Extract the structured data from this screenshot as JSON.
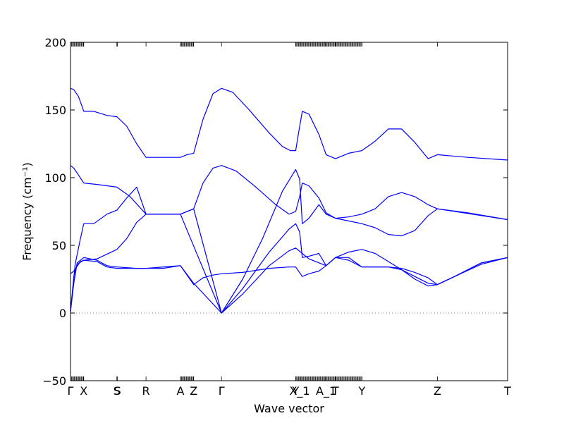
{
  "chart_data": {
    "type": "line",
    "xlabel": "Wave vector",
    "ylabel": "Frequency (cm⁻¹)",
    "ylim": [
      -50,
      200
    ],
    "yticks": [
      -50,
      0,
      50,
      100,
      150,
      200
    ],
    "grid": false,
    "zero_line": {
      "y": 0,
      "style": "dotted",
      "color": "#808080"
    },
    "line_color": "#0000ff",
    "xlim": [
      0,
      6.6
    ],
    "special_points": [
      {
        "label": "Γ",
        "x": 0.0
      },
      {
        "label": "X",
        "x": 0.2
      },
      {
        "label": "S",
        "x": 0.7
      },
      {
        "label": "S",
        "x": 0.71
      },
      {
        "label": "R",
        "x": 1.14
      },
      {
        "label": "A",
        "x": 1.66
      },
      {
        "label": "Z",
        "x": 1.86
      },
      {
        "label": "Γ",
        "x": 2.28
      },
      {
        "label": "Y",
        "x": 3.4
      },
      {
        "label": "X_1",
        "x": 3.46
      },
      {
        "label": "A_1",
        "x": 3.86
      },
      {
        "label": "T",
        "x": 4.0
      },
      {
        "label": "Y",
        "x": 4.4
      },
      {
        "label": "Z",
        "x": 5.54
      },
      {
        "label": "T",
        "x": 6.6
      }
    ],
    "tick_clusters": [
      [
        0.0,
        0.2
      ],
      [
        1.66,
        1.86
      ],
      [
        3.4,
        3.86
      ],
      [
        3.86,
        4.4
      ]
    ],
    "series": [
      {
        "values": [
          [
            0,
            166
          ],
          [
            0.05,
            165
          ],
          [
            0.12,
            160
          ],
          [
            0.2,
            149
          ],
          [
            0.35,
            149
          ],
          [
            0.55,
            146
          ],
          [
            0.7,
            145
          ],
          [
            0.85,
            138
          ],
          [
            1.0,
            125
          ],
          [
            1.14,
            115
          ],
          [
            1.4,
            115
          ],
          [
            1.66,
            115
          ],
          [
            1.76,
            117
          ],
          [
            1.86,
            118
          ],
          [
            2.0,
            143
          ],
          [
            2.15,
            162
          ],
          [
            2.28,
            166
          ],
          [
            2.45,
            163
          ],
          [
            2.7,
            150
          ],
          [
            3.0,
            133
          ],
          [
            3.2,
            123
          ],
          [
            3.32,
            120
          ],
          [
            3.4,
            120
          ],
          [
            3.45,
            135
          ],
          [
            3.5,
            149
          ],
          [
            3.6,
            147
          ],
          [
            3.75,
            132
          ],
          [
            3.86,
            117
          ],
          [
            4.0,
            114
          ],
          [
            4.2,
            118
          ],
          [
            4.4,
            120
          ],
          [
            4.6,
            127
          ],
          [
            4.8,
            136
          ],
          [
            5.0,
            136
          ],
          [
            5.2,
            126
          ],
          [
            5.4,
            114
          ],
          [
            5.54,
            117
          ],
          [
            6.0,
            115
          ],
          [
            6.6,
            113
          ]
        ]
      },
      {
        "values": [
          [
            0,
            109
          ],
          [
            0.05,
            107
          ],
          [
            0.12,
            102
          ],
          [
            0.2,
            96
          ],
          [
            0.4,
            95
          ],
          [
            0.7,
            93
          ],
          [
            0.9,
            86
          ],
          [
            1.14,
            73
          ],
          [
            1.4,
            73
          ],
          [
            1.66,
            73
          ],
          [
            1.86,
            77
          ],
          [
            2.0,
            96
          ],
          [
            2.15,
            107
          ],
          [
            2.28,
            109
          ],
          [
            2.5,
            105
          ],
          [
            2.8,
            93
          ],
          [
            3.1,
            80
          ],
          [
            3.3,
            73
          ],
          [
            3.4,
            75
          ],
          [
            3.46,
            86
          ],
          [
            3.5,
            96
          ],
          [
            3.6,
            94
          ],
          [
            3.75,
            85
          ],
          [
            3.86,
            74
          ],
          [
            4.0,
            70
          ],
          [
            4.2,
            71
          ],
          [
            4.4,
            73
          ],
          [
            4.6,
            77
          ],
          [
            4.8,
            86
          ],
          [
            5.0,
            89
          ],
          [
            5.2,
            86
          ],
          [
            5.4,
            80
          ],
          [
            5.54,
            77
          ],
          [
            6.0,
            74
          ],
          [
            6.6,
            69
          ]
        ]
      },
      {
        "values": [
          [
            0,
            1
          ],
          [
            0.07,
            36
          ],
          [
            0.15,
            55
          ],
          [
            0.2,
            66
          ],
          [
            0.35,
            66
          ],
          [
            0.55,
            73
          ],
          [
            0.7,
            76
          ],
          [
            0.85,
            85
          ],
          [
            1.0,
            93
          ],
          [
            1.14,
            73
          ],
          [
            1.66,
            73
          ],
          [
            1.86,
            77
          ],
          [
            2.28,
            0
          ],
          [
            2.6,
            25
          ],
          [
            2.9,
            55
          ],
          [
            3.2,
            90
          ],
          [
            3.4,
            106
          ],
          [
            3.46,
            99
          ],
          [
            3.5,
            66
          ],
          [
            3.6,
            70
          ],
          [
            3.75,
            80
          ],
          [
            3.86,
            73
          ],
          [
            4.0,
            70
          ],
          [
            4.2,
            68
          ],
          [
            4.4,
            66
          ],
          [
            4.6,
            63
          ],
          [
            4.8,
            58
          ],
          [
            5.0,
            57
          ],
          [
            5.2,
            61
          ],
          [
            5.4,
            72
          ],
          [
            5.54,
            77
          ],
          [
            6.6,
            69
          ]
        ]
      },
      {
        "values": [
          [
            0,
            1
          ],
          [
            0.05,
            27
          ],
          [
            0.1,
            36
          ],
          [
            0.2,
            39
          ],
          [
            0.4,
            40
          ],
          [
            0.7,
            47
          ],
          [
            0.85,
            55
          ],
          [
            1.0,
            67
          ],
          [
            1.14,
            73
          ],
          [
            1.66,
            73
          ],
          [
            2.28,
            0
          ],
          [
            2.6,
            18
          ],
          [
            3.0,
            45
          ],
          [
            3.3,
            62
          ],
          [
            3.4,
            66
          ],
          [
            3.46,
            60
          ],
          [
            3.5,
            41
          ],
          [
            3.6,
            42
          ],
          [
            3.75,
            44
          ],
          [
            3.86,
            35
          ],
          [
            4.0,
            41
          ],
          [
            4.2,
            39
          ],
          [
            4.4,
            34
          ],
          [
            4.8,
            34
          ],
          [
            5.0,
            33
          ],
          [
            5.2,
            30
          ],
          [
            5.4,
            26
          ],
          [
            5.54,
            21
          ],
          [
            5.8,
            27
          ],
          [
            6.2,
            37
          ],
          [
            6.6,
            41
          ]
        ]
      },
      {
        "values": [
          [
            0,
            1
          ],
          [
            0.05,
            22
          ],
          [
            0.1,
            37
          ],
          [
            0.2,
            41
          ],
          [
            0.4,
            39
          ],
          [
            0.55,
            35
          ],
          [
            0.7,
            34
          ],
          [
            1.0,
            33
          ],
          [
            1.14,
            33
          ],
          [
            1.4,
            33
          ],
          [
            1.66,
            35
          ],
          [
            1.86,
            22
          ],
          [
            2.28,
            0
          ],
          [
            2.6,
            14
          ],
          [
            3.0,
            35
          ],
          [
            3.3,
            46
          ],
          [
            3.4,
            48
          ],
          [
            3.5,
            44
          ],
          [
            3.6,
            40
          ],
          [
            3.86,
            35
          ],
          [
            4.0,
            41
          ],
          [
            4.2,
            45
          ],
          [
            4.4,
            47
          ],
          [
            4.6,
            44
          ],
          [
            4.8,
            38
          ],
          [
            5.0,
            32
          ],
          [
            5.2,
            25
          ],
          [
            5.4,
            20
          ],
          [
            5.54,
            21
          ],
          [
            5.8,
            27
          ],
          [
            6.2,
            36
          ],
          [
            6.6,
            41
          ]
        ]
      },
      {
        "values": [
          [
            0,
            29
          ],
          [
            0.05,
            31
          ],
          [
            0.15,
            38
          ],
          [
            0.2,
            39
          ],
          [
            0.4,
            38
          ],
          [
            0.55,
            34
          ],
          [
            0.7,
            33
          ],
          [
            1.14,
            33
          ],
          [
            1.66,
            35
          ],
          [
            1.86,
            21
          ],
          [
            2.0,
            26
          ],
          [
            2.15,
            28
          ],
          [
            2.28,
            29
          ],
          [
            2.6,
            30
          ],
          [
            3.0,
            33
          ],
          [
            3.3,
            34
          ],
          [
            3.4,
            34
          ],
          [
            3.5,
            27
          ],
          [
            3.6,
            29
          ],
          [
            3.75,
            31
          ],
          [
            3.86,
            35
          ],
          [
            4.0,
            41
          ],
          [
            4.2,
            41
          ],
          [
            4.4,
            34
          ],
          [
            4.8,
            34
          ],
          [
            5.0,
            32
          ],
          [
            5.2,
            27
          ],
          [
            5.4,
            22
          ],
          [
            5.54,
            21
          ],
          [
            5.8,
            27
          ],
          [
            6.2,
            37
          ],
          [
            6.6,
            41
          ]
        ]
      }
    ]
  }
}
